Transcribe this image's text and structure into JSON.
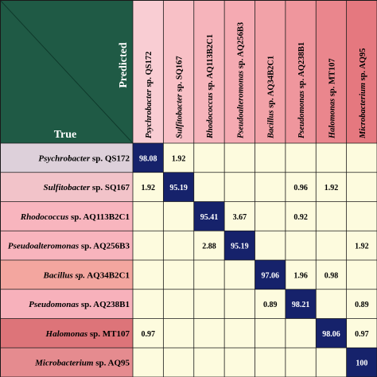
{
  "chart_data": {
    "type": "heatmap",
    "corner": {
      "row_axis_label": "True",
      "col_axis_label": "Predicted"
    },
    "columns": [
      {
        "genus": "Psychrobacter",
        "rest": " sp. QS172",
        "style": "italic"
      },
      {
        "genus": "Sulfitobacter",
        "rest": " sp. SQ167",
        "style": "italic"
      },
      {
        "genus": "Rhodococcus",
        "rest": " sp. AQ113B2C1",
        "style": "italic"
      },
      {
        "genus": "Pseudoalteromonas",
        "rest": " sp. AQ256B3",
        "style": "italic"
      },
      {
        "genus": "Bacillus",
        "rest": " sp. AQ34B2C1",
        "style": "italic"
      },
      {
        "genus": "Pseudomonas",
        "rest": " sp. AQ238B1",
        "style": "italic"
      },
      {
        "genus": "Halomonas",
        "rest": " sp. MT107",
        "style": "italic"
      },
      {
        "genus": "Microbacterium",
        "rest": " sp. AQ95",
        "style": "italic"
      }
    ],
    "rows": [
      {
        "genus": "Psychrobacter",
        "rest": " sp. QS172"
      },
      {
        "genus": "Sulfitobacter",
        "rest": " sp. SQ167"
      },
      {
        "genus": "Rhodococcus",
        "rest": " sp. AQ113B2C1"
      },
      {
        "genus": "Pseudoalteromonas",
        "rest": " sp. AQ256B3"
      },
      {
        "genus": "Bacillus sp.",
        "rest": " AQ34B2C1"
      },
      {
        "genus": "Pseudomonas",
        "rest": " sp. AQ238B1"
      },
      {
        "genus": "Halomonas",
        "rest": " sp. MT107"
      },
      {
        "genus": "Microbacterium",
        "rest": " sp. AQ95"
      }
    ],
    "values": [
      [
        "98.08",
        "1.92",
        "",
        "",
        "",
        "",
        "",
        ""
      ],
      [
        "1.92",
        "95.19",
        "",
        "",
        "",
        "0.96",
        "1.92",
        ""
      ],
      [
        "",
        "",
        "95.41",
        "3.67",
        "",
        "0.92",
        "",
        ""
      ],
      [
        "",
        "",
        "2.88",
        "95.19",
        "",
        "",
        "",
        "1.92"
      ],
      [
        "",
        "",
        "",
        "",
        "97.06",
        "1.96",
        "0.98",
        ""
      ],
      [
        "",
        "",
        "",
        "",
        "0.89",
        "98.21",
        "",
        "0.89"
      ],
      [
        "0.97",
        "",
        "",
        "",
        "",
        "",
        "98.06",
        "0.97"
      ],
      [
        "",
        "",
        "",
        "",
        "",
        "",
        "",
        "100"
      ]
    ],
    "colors": {
      "corner": "#1f5a45",
      "cell_background": "#fdfbde",
      "diagonal": "#16226b",
      "diagonal_text": "#ffffff",
      "off_diagonal_text": "#000000",
      "grid": "#1a1a1a",
      "row_header": [
        "#ddd0da",
        "#f2c3c9",
        "#f8b5be",
        "#f8b4bd",
        "#f3a69f",
        "#f7b1bb",
        "#dd7479",
        "#e58b8f"
      ],
      "col_header": [
        "#f9cdd3",
        "#f8c0c6",
        "#f6b4bb",
        "#f5aab2",
        "#f2a2a8",
        "#ef969d",
        "#ea868d",
        "#e5787f"
      ]
    }
  }
}
